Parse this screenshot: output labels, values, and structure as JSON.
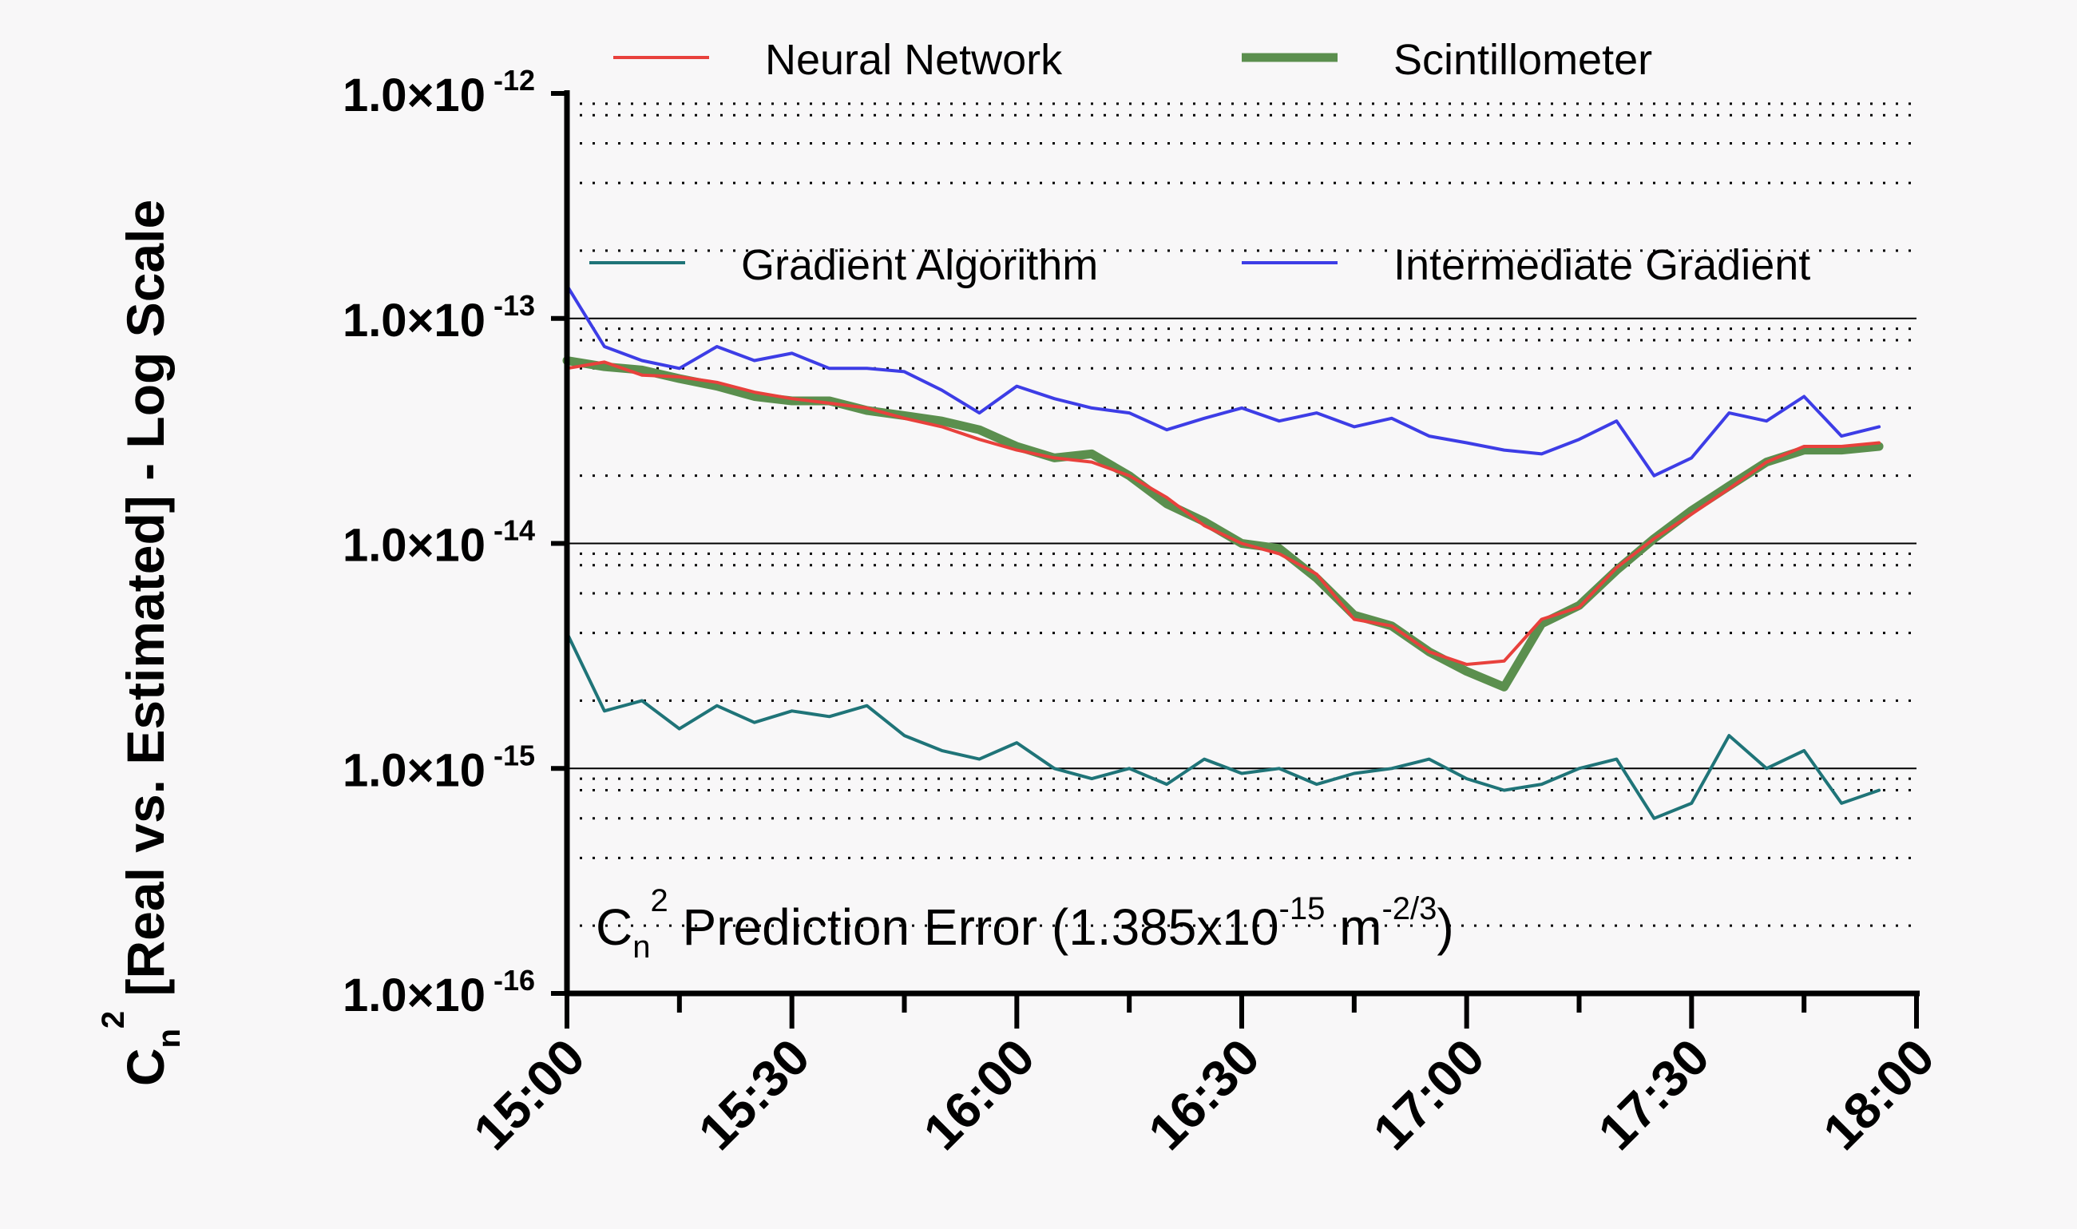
{
  "chart_data": {
    "type": "line",
    "ylabel": {
      "base": "C",
      "sub": "n",
      "sup": "2",
      "rest": " [Real vs. Estimated] - Log Scale"
    },
    "annotation": {
      "prefix": "C",
      "sub": "n",
      "sup": "2",
      "text1": " Prediction Error (1.385x10",
      "exp1": "-15",
      "text2": " m",
      "exp2": "-2/3",
      "text3": ")"
    },
    "y_scale": "log",
    "ylim": [
      1e-16,
      1e-12
    ],
    "y_ticks": [
      {
        "mant": "1.0×10",
        "exp": "-12",
        "value": 1e-12
      },
      {
        "mant": "1.0×10",
        "exp": "-13",
        "value": 1e-13
      },
      {
        "mant": "1.0×10",
        "exp": "-14",
        "value": 1e-14
      },
      {
        "mant": "1.0×10",
        "exp": "-15",
        "value": 1e-15
      },
      {
        "mant": "1.0×10",
        "exp": "-16",
        "value": 1e-16
      }
    ],
    "xlim": [
      "15:00",
      "18:00"
    ],
    "x_ticks": [
      "15:00",
      "15:30",
      "16:00",
      "16:30",
      "17:00",
      "17:30",
      "18:00"
    ],
    "grid": {
      "major_y": "solid",
      "minor_y": "dotted"
    },
    "legend_position": "top",
    "series": [
      {
        "name": "Neural Network",
        "color": "#e8413c",
        "width": "thin",
        "x": [
          "15:00",
          "15:05",
          "15:10",
          "15:15",
          "15:20",
          "15:25",
          "15:30",
          "15:35",
          "15:40",
          "15:45",
          "15:50",
          "15:55",
          "16:00",
          "16:05",
          "16:10",
          "16:15",
          "16:20",
          "16:25",
          "16:30",
          "16:35",
          "16:40",
          "16:45",
          "16:50",
          "16:55",
          "17:00",
          "17:05",
          "17:10",
          "17:15",
          "17:20",
          "17:25",
          "17:30",
          "17:35",
          "17:40",
          "17:45",
          "17:50",
          "17:55"
        ],
        "values": [
          6e-14,
          6.4e-14,
          5.6e-14,
          5.5e-14,
          5.2e-14,
          4.7e-14,
          4.4e-14,
          4.2e-14,
          4e-14,
          3.6e-14,
          3.3e-14,
          2.9e-14,
          2.6e-14,
          2.4e-14,
          2.3e-14,
          2e-14,
          1.6e-14,
          1.2e-14,
          1e-14,
          9e-15,
          7.3e-15,
          4.6e-15,
          4.3e-15,
          3.3e-15,
          2.9e-15,
          3e-15,
          4.6e-15,
          5.2e-15,
          7.8e-15,
          1.05e-14,
          1.35e-14,
          1.75e-14,
          2.3e-14,
          2.7e-14,
          2.7e-14,
          2.8e-14
        ]
      },
      {
        "name": "Scintillometer",
        "color": "#5b8f4e",
        "width": "thick",
        "x": [
          "15:00",
          "15:05",
          "15:10",
          "15:15",
          "15:20",
          "15:25",
          "15:30",
          "15:35",
          "15:40",
          "15:45",
          "15:50",
          "15:55",
          "16:00",
          "16:05",
          "16:10",
          "16:15",
          "16:20",
          "16:25",
          "16:30",
          "16:35",
          "16:40",
          "16:45",
          "16:50",
          "16:55",
          "17:00",
          "17:05",
          "17:10",
          "17:15",
          "17:20",
          "17:25",
          "17:30",
          "17:35",
          "17:40",
          "17:45",
          "17:50",
          "17:55"
        ],
        "values": [
          6.5e-14,
          6.1e-14,
          5.9e-14,
          5.4e-14,
          5e-14,
          4.5e-14,
          4.3e-14,
          4.3e-14,
          3.9e-14,
          3.7e-14,
          3.5e-14,
          3.2e-14,
          2.7e-14,
          2.4e-14,
          2.5e-14,
          2e-14,
          1.5e-14,
          1.25e-14,
          1e-14,
          9.5e-15,
          7e-15,
          4.8e-15,
          4.3e-15,
          3.3e-15,
          2.7e-15,
          2.3e-15,
          4.4e-15,
          5.3e-15,
          7.6e-15,
          1.05e-14,
          1.4e-14,
          1.8e-14,
          2.3e-14,
          2.6e-14,
          2.6e-14,
          2.7e-14
        ]
      },
      {
        "name": "Gradient Algorithm",
        "color": "#1f7478",
        "width": "thin",
        "x": [
          "15:00",
          "15:05",
          "15:10",
          "15:15",
          "15:20",
          "15:25",
          "15:30",
          "15:35",
          "15:40",
          "15:45",
          "15:50",
          "15:55",
          "16:00",
          "16:05",
          "16:10",
          "16:15",
          "16:20",
          "16:25",
          "16:30",
          "16:35",
          "16:40",
          "16:45",
          "16:50",
          "16:55",
          "17:00",
          "17:05",
          "17:10",
          "17:15",
          "17:20",
          "17:25",
          "17:30",
          "17:35",
          "17:40",
          "17:45",
          "17:50",
          "17:55"
        ],
        "values": [
          4e-15,
          1.8e-15,
          2e-15,
          1.5e-15,
          1.9e-15,
          1.6e-15,
          1.8e-15,
          1.7e-15,
          1.9e-15,
          1.4e-15,
          1.2e-15,
          1.1e-15,
          1.3e-15,
          1e-15,
          9e-16,
          1e-15,
          8.5e-16,
          1.1e-15,
          9.5e-16,
          1e-15,
          8.5e-16,
          9.5e-16,
          1e-15,
          1.1e-15,
          9e-16,
          8e-16,
          8.5e-16,
          1e-15,
          1.1e-15,
          6e-16,
          7e-16,
          1.4e-15,
          1e-15,
          1.2e-15,
          7e-16,
          8e-16
        ]
      },
      {
        "name": "Intermediate Gradient",
        "color": "#3d3de6",
        "width": "thin",
        "x": [
          "15:00",
          "15:05",
          "15:10",
          "15:15",
          "15:20",
          "15:25",
          "15:30",
          "15:35",
          "15:40",
          "15:45",
          "15:50",
          "15:55",
          "16:00",
          "16:05",
          "16:10",
          "16:15",
          "16:20",
          "16:25",
          "16:30",
          "16:35",
          "16:40",
          "16:45",
          "16:50",
          "16:55",
          "17:00",
          "17:05",
          "17:10",
          "17:15",
          "17:20",
          "17:25",
          "17:30",
          "17:35",
          "17:40",
          "17:45",
          "17:50",
          "17:55"
        ],
        "values": [
          1.4e-13,
          7.5e-14,
          6.5e-14,
          6e-14,
          7.5e-14,
          6.5e-14,
          7e-14,
          6e-14,
          6e-14,
          5.8e-14,
          4.8e-14,
          3.8e-14,
          5e-14,
          4.4e-14,
          4e-14,
          3.8e-14,
          3.2e-14,
          3.6e-14,
          4e-14,
          3.5e-14,
          3.8e-14,
          3.3e-14,
          3.6e-14,
          3e-14,
          2.8e-14,
          2.6e-14,
          2.5e-14,
          2.9e-14,
          3.5e-14,
          2e-14,
          2.4e-14,
          3.8e-14,
          3.5e-14,
          4.5e-14,
          3e-14,
          3.3e-14
        ]
      }
    ]
  }
}
